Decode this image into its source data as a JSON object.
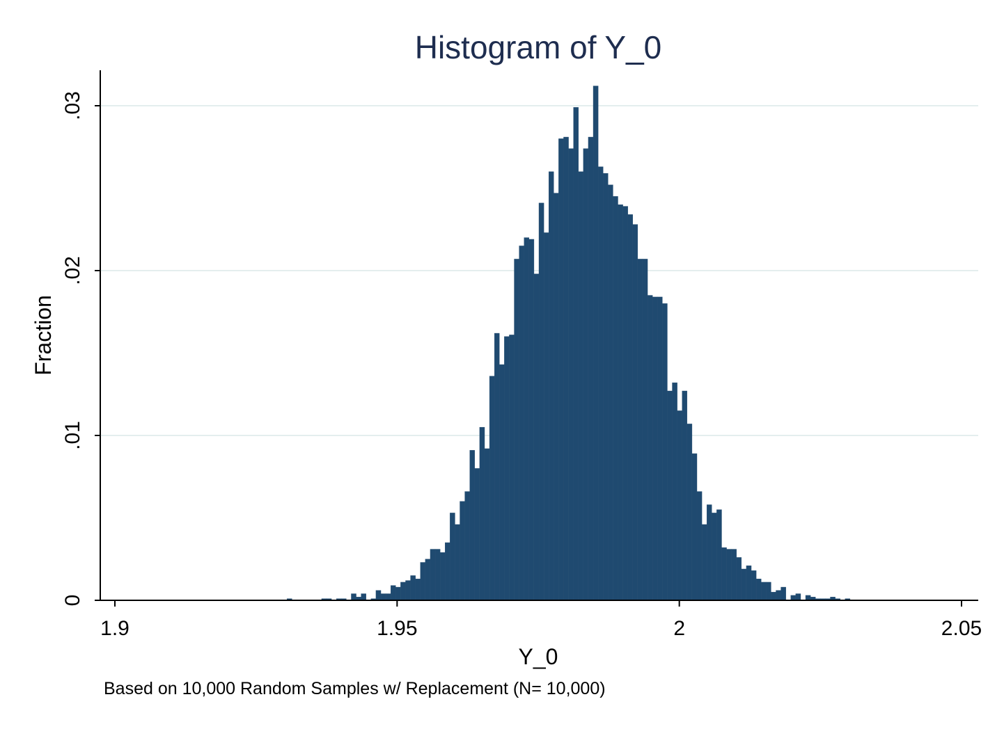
{
  "chart_data": {
    "type": "bar",
    "title": "Histogram of Y_0",
    "xlabel": "Y_0",
    "ylabel": "Fraction",
    "note": "Based on 10,000 Random Samples w/ Replacement (N= 10,000)",
    "xlim": [
      1.9,
      2.05
    ],
    "ylim": [
      0,
      0.03
    ],
    "x_ticks": [
      {
        "value": 1.9,
        "label": "1.9"
      },
      {
        "value": 1.95,
        "label": "1.95"
      },
      {
        "value": 2.0,
        "label": "2"
      },
      {
        "value": 2.05,
        "label": "2.05"
      }
    ],
    "y_ticks": [
      {
        "value": 0,
        "label": "0"
      },
      {
        "value": 0.01,
        "label": ".01"
      },
      {
        "value": 0.02,
        "label": ".02"
      },
      {
        "value": 0.03,
        "label": ".03"
      }
    ],
    "grid": true,
    "bar_color": "#1f4a70",
    "bin_start": 1.9305,
    "bin_width": 0.000875,
    "values": [
      0.0001,
      0,
      0,
      0,
      0,
      0,
      0,
      0.0001,
      0.0001,
      0,
      0.0001,
      0.0001,
      0,
      0.0004,
      0.0002,
      0.0004,
      0,
      0.0001,
      0.0006,
      0.0004,
      0.0004,
      0.0009,
      0.0008,
      0.0011,
      0.0012,
      0.0015,
      0.0013,
      0.0023,
      0.0025,
      0.0031,
      0.0031,
      0.0029,
      0.0035,
      0.0053,
      0.0046,
      0.006,
      0.0066,
      0.0091,
      0.008,
      0.0105,
      0.0092,
      0.0136,
      0.0162,
      0.0143,
      0.016,
      0.0161,
      0.0207,
      0.0215,
      0.022,
      0.0219,
      0.0198,
      0.0241,
      0.0223,
      0.026,
      0.0247,
      0.028,
      0.0281,
      0.0274,
      0.0299,
      0.026,
      0.0274,
      0.0281,
      0.0312,
      0.0263,
      0.0259,
      0.0252,
      0.0245,
      0.024,
      0.0239,
      0.0234,
      0.0228,
      0.0207,
      0.0207,
      0.0185,
      0.0184,
      0.0184,
      0.018,
      0.0127,
      0.0132,
      0.0115,
      0.0127,
      0.0107,
      0.0089,
      0.0066,
      0.0046,
      0.0058,
      0.0053,
      0.0055,
      0.0032,
      0.0031,
      0.0031,
      0.0026,
      0.0019,
      0.0021,
      0.0018,
      0.0013,
      0.0011,
      0.0011,
      0.0005,
      0.0006,
      0.0008,
      0,
      0.0003,
      0.0004,
      0,
      0.0003,
      0.0002,
      0.0001,
      0.0001,
      0.0001,
      0.0002,
      0.0001,
      0,
      0.0001
    ]
  }
}
